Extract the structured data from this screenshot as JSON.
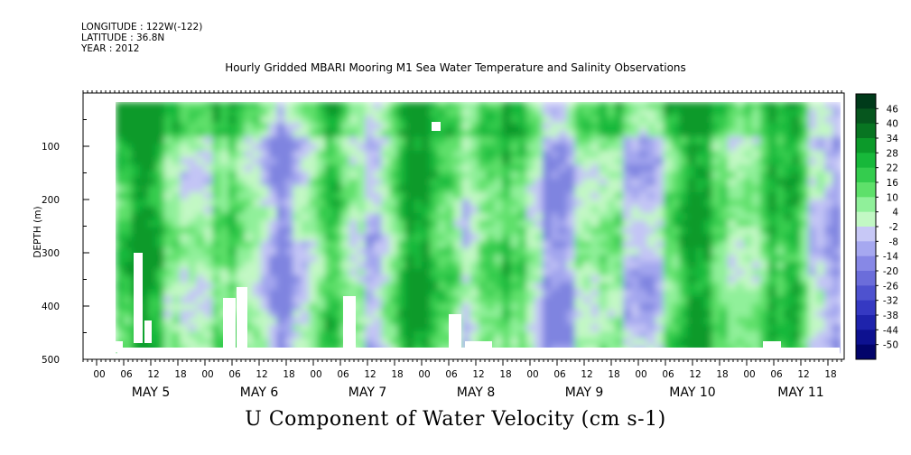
{
  "header": {
    "longitude": "LONGITUDE : 122W(-122)",
    "latitude": "LATITUDE : 36.8N",
    "year": "YEAR : 2012"
  },
  "title": "Hourly Gridded MBARI Mooring M1 Sea Water Temperature and Salinity Observations",
  "bottom_title": "U Component of Water Velocity (cm s-1)",
  "chart_data": {
    "type": "heatmap",
    "ylabel": "DEPTH (m)",
    "y_ticks": [
      100,
      200,
      300,
      400,
      500
    ],
    "ylim": [
      500,
      0
    ],
    "x_hour_ticks": [
      "00",
      "06",
      "12",
      "18",
      "00",
      "06",
      "12",
      "18",
      "00",
      "06",
      "12",
      "18",
      "00",
      "06",
      "12",
      "18",
      "00",
      "06",
      "12",
      "18",
      "00",
      "06",
      "12",
      "18",
      "00",
      "06",
      "12",
      "18"
    ],
    "x_day_labels": [
      "MAY  5",
      "MAY  6",
      "MAY  7",
      "MAY  8",
      "MAY  9",
      "MAY 10",
      "MAY 11"
    ],
    "colorbar": {
      "labels": [
        "46",
        "40",
        "34",
        "28",
        "22",
        "16",
        "10",
        "4",
        "-2",
        "-8",
        "-14",
        "-20",
        "-26",
        "-32",
        "-38",
        "-44",
        "-50"
      ],
      "colors": [
        "#003a1a",
        "#06561e",
        "#087522",
        "#0c9a2a",
        "#17b83a",
        "#34cc4e",
        "#5ee06a",
        "#90f09a",
        "#c2f8c4",
        "#c7c8f6",
        "#a6a8f0",
        "#8788e6",
        "#6b6dda",
        "#4e52cf",
        "#3539c2",
        "#1e23ac",
        "#0d1190",
        "#02046a"
      ]
    }
  }
}
